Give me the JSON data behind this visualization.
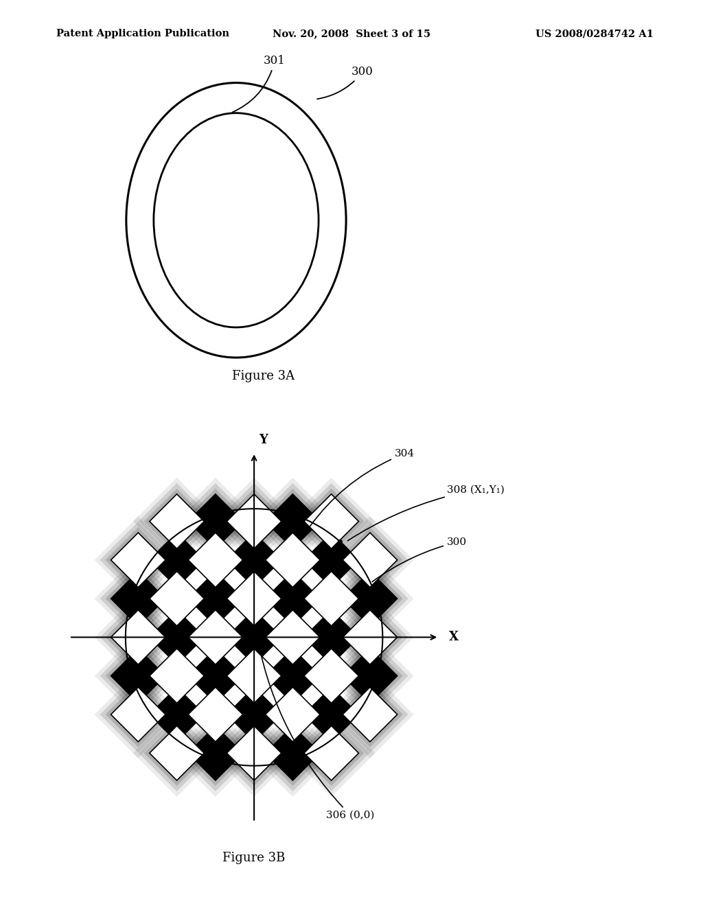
{
  "header_left": "Patent Application Publication",
  "header_mid": "Nov. 20, 2008  Sheet 3 of 15",
  "header_right": "US 2008/0284742 A1",
  "fig3a_caption": "Figure 3A",
  "fig3b_caption": "Figure 3B",
  "label_301": "301",
  "label_300_top": "300",
  "label_304": "304",
  "label_308": "308 (X₁,Y₁)",
  "label_300_mid": "300",
  "label_306": "306 (0,0)",
  "label_X": "X",
  "label_Y": "Y",
  "bg_color": "#ffffff",
  "line_color": "#000000",
  "header_fontsize": 10.5,
  "caption_fontsize": 13
}
